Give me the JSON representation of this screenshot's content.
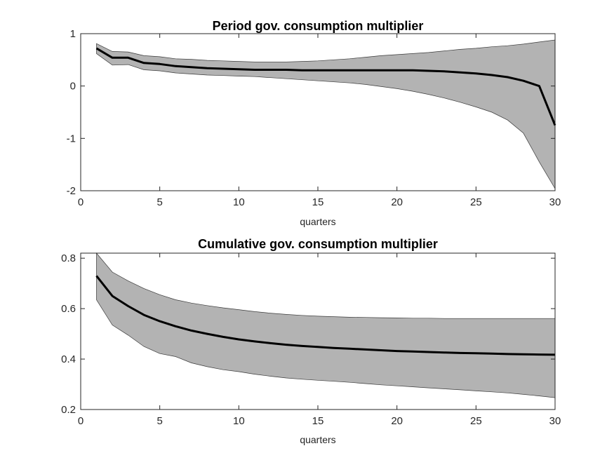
{
  "chart_data": [
    {
      "type": "area",
      "title": "Period gov. consumption multiplier",
      "xlabel": "quarters",
      "ylabel": "",
      "xlim": [
        0,
        30
      ],
      "ylim": [
        -2,
        1
      ],
      "xticks": [
        0,
        5,
        10,
        15,
        20,
        25,
        30
      ],
      "yticks": [
        -2,
        -1,
        0,
        1
      ],
      "grid": false,
      "legend": "none",
      "line_color": "#000000",
      "band_color": "#b3b3b3",
      "x": [
        1,
        2,
        3,
        4,
        5,
        6,
        7,
        8,
        9,
        10,
        11,
        12,
        13,
        14,
        15,
        16,
        17,
        18,
        19,
        20,
        21,
        22,
        23,
        24,
        25,
        26,
        27,
        28,
        29,
        30
      ],
      "series": [
        {
          "role": "median",
          "values": [
            0.72,
            0.54,
            0.54,
            0.44,
            0.42,
            0.38,
            0.36,
            0.34,
            0.33,
            0.32,
            0.31,
            0.31,
            0.31,
            0.3,
            0.3,
            0.3,
            0.3,
            0.3,
            0.3,
            0.3,
            0.3,
            0.29,
            0.28,
            0.26,
            0.24,
            0.21,
            0.17,
            0.1,
            0.0,
            -0.75
          ]
        },
        {
          "role": "upper",
          "values": [
            0.81,
            0.66,
            0.65,
            0.58,
            0.56,
            0.52,
            0.51,
            0.49,
            0.48,
            0.47,
            0.46,
            0.46,
            0.46,
            0.47,
            0.48,
            0.5,
            0.52,
            0.55,
            0.58,
            0.6,
            0.62,
            0.64,
            0.67,
            0.7,
            0.72,
            0.75,
            0.77,
            0.8,
            0.84,
            0.88
          ]
        },
        {
          "role": "lower",
          "values": [
            0.62,
            0.4,
            0.41,
            0.31,
            0.29,
            0.25,
            0.23,
            0.21,
            0.2,
            0.19,
            0.18,
            0.16,
            0.14,
            0.12,
            0.1,
            0.08,
            0.06,
            0.03,
            -0.01,
            -0.05,
            -0.1,
            -0.16,
            -0.23,
            -0.31,
            -0.4,
            -0.5,
            -0.65,
            -0.9,
            -1.45,
            -1.96
          ]
        }
      ]
    },
    {
      "type": "area",
      "title": "Cumulative gov. consumption multiplier",
      "xlabel": "quarters",
      "ylabel": "",
      "xlim": [
        0,
        30
      ],
      "ylim": [
        0.2,
        0.82
      ],
      "xticks": [
        0,
        5,
        10,
        15,
        20,
        25,
        30
      ],
      "yticks": [
        0.2,
        0.4,
        0.6,
        0.8
      ],
      "grid": false,
      "legend": "none",
      "line_color": "#000000",
      "band_color": "#b3b3b3",
      "x": [
        1,
        2,
        3,
        4,
        5,
        6,
        7,
        8,
        9,
        10,
        11,
        12,
        13,
        14,
        15,
        16,
        17,
        18,
        19,
        20,
        21,
        22,
        23,
        24,
        25,
        26,
        27,
        28,
        29,
        30
      ],
      "series": [
        {
          "role": "median",
          "values": [
            0.73,
            0.65,
            0.61,
            0.575,
            0.55,
            0.53,
            0.513,
            0.5,
            0.488,
            0.478,
            0.47,
            0.463,
            0.457,
            0.452,
            0.448,
            0.444,
            0.441,
            0.438,
            0.435,
            0.432,
            0.43,
            0.428,
            0.426,
            0.424,
            0.423,
            0.422,
            0.42,
            0.419,
            0.418,
            0.417
          ]
        },
        {
          "role": "upper",
          "values": [
            0.82,
            0.745,
            0.71,
            0.68,
            0.655,
            0.635,
            0.622,
            0.612,
            0.603,
            0.596,
            0.588,
            0.582,
            0.577,
            0.573,
            0.57,
            0.568,
            0.566,
            0.565,
            0.564,
            0.563,
            0.562,
            0.562,
            0.561,
            0.561,
            0.561,
            0.561,
            0.561,
            0.561,
            0.561,
            0.561
          ]
        },
        {
          "role": "lower",
          "values": [
            0.635,
            0.535,
            0.495,
            0.45,
            0.422,
            0.41,
            0.385,
            0.37,
            0.358,
            0.35,
            0.34,
            0.332,
            0.325,
            0.32,
            0.316,
            0.312,
            0.308,
            0.303,
            0.298,
            0.294,
            0.29,
            0.286,
            0.282,
            0.278,
            0.274,
            0.27,
            0.266,
            0.26,
            0.254,
            0.247
          ]
        }
      ]
    }
  ]
}
